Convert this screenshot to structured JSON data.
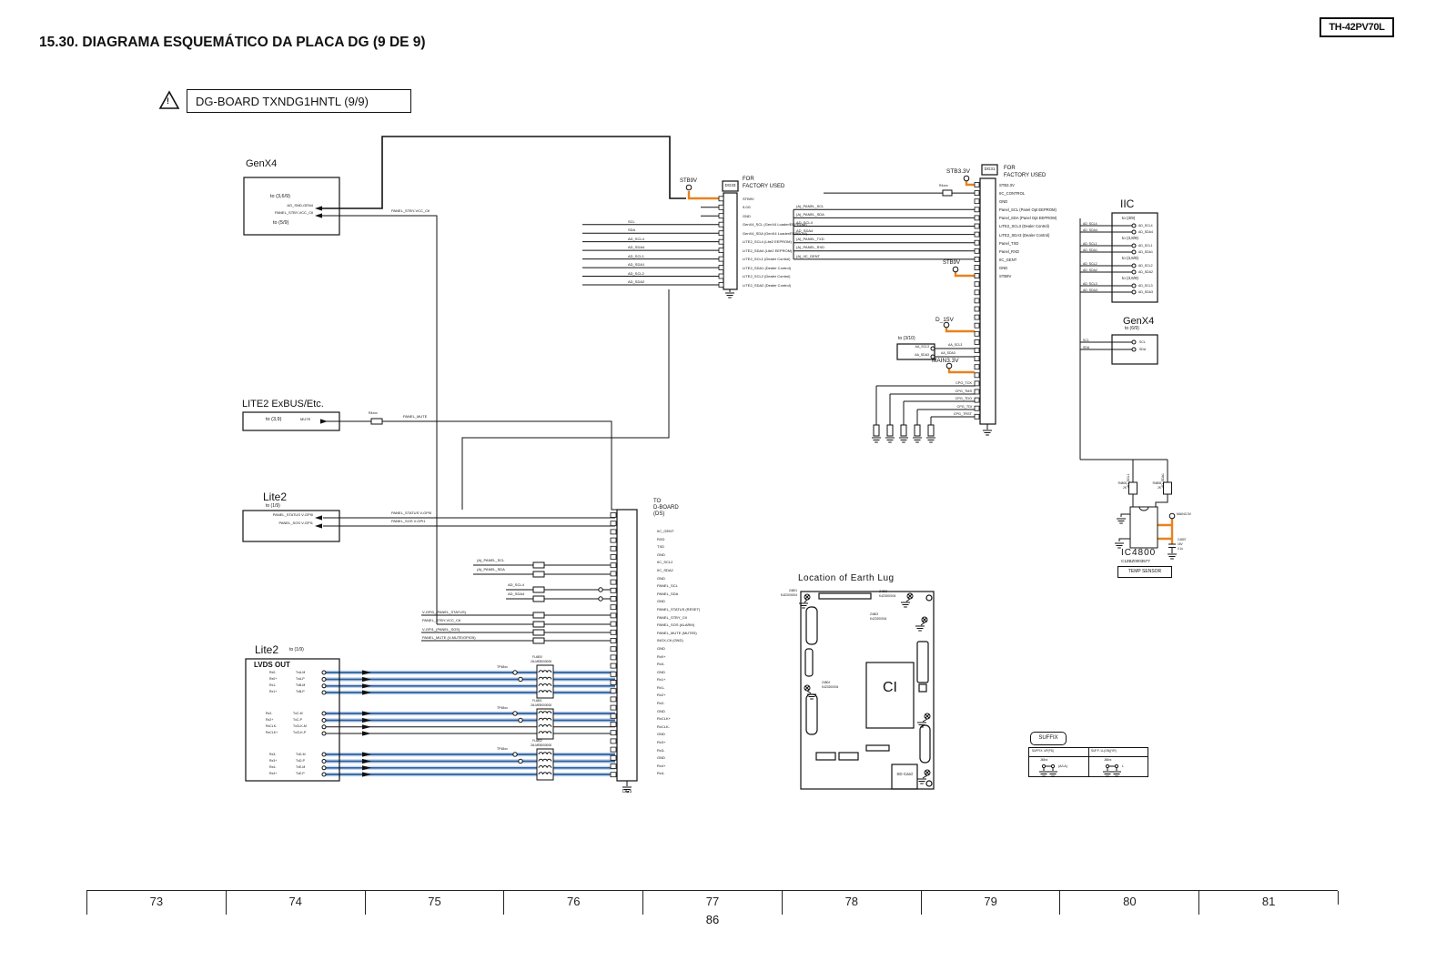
{
  "page": {
    "model": "TH-42PV70L",
    "title": "15.30. DIAGRAMA ESQUEMÁTICO DA PLACA DG (9 DE 9)",
    "warning_icon": "!",
    "board_label": "DG-BOARD TXNDG1HNTL (9/9)",
    "page_number": "86",
    "ruler": [
      "73",
      "74",
      "75",
      "76",
      "77",
      "78",
      "79",
      "80",
      "81"
    ]
  },
  "colors": {
    "wire": "#111111",
    "orange": "#e8821e",
    "lvds_blue": "#2d5f9f",
    "lvds_halo": "#c3d4ea"
  },
  "genx4_left": {
    "title": "GenX4",
    "to1": "to (3,6/9)",
    "sig1": "AG_SND-GEN4",
    "sig2": "PANEL_STBY-VCC_Ctl",
    "to2": "to (5/9)",
    "wire1": "PANEL_STBY-VCC_Ctl"
  },
  "dg33": {
    "ref": "DG33",
    "note1": "FOR",
    "note2": "FACTORY USED",
    "power": "STB9V",
    "pins": [
      "STB9V",
      "9-0G",
      "GND",
      "GenX4_SCL  (GenX4 Loader/EEPROM)",
      "GenX4_SDA  (GenX4 Loader/EEPROM)",
      "LITE2_SCL4  (Lite2 EEPROM)",
      "LITE2_SDA4  (Lite2 EEPROM)",
      "LITE2_SCL1  (Dealer Control)",
      "LITE2_SDA1  (Dealer Control)",
      "LITE2_SCL2  (Dealer Control)",
      "LITE2_SDA2  (Dealer Control)"
    ],
    "left_labels": [
      "SCL",
      "SDA",
      "AD_SCL4",
      "AD_SDA4",
      "AD_SCL1",
      "AD_SDA1",
      "AD_SCL2",
      "AD_SDA2"
    ]
  },
  "mid_labels": [
    "(A)_PANEL_SCL",
    "(A)_PANEL_SDA",
    "AD_SCL4",
    "AD_SDA4",
    "(A)_PANEL_TXD",
    "(A)_PANEL_RXD",
    "(A)_IIC_GENT"
  ],
  "dg31": {
    "ref": "DG31",
    "note1": "FOR",
    "note2": "FACTORY USED",
    "power_top": "STB3.3V",
    "res": "R4xxx",
    "power_mid": "STB9V",
    "power_d15": "D_15V",
    "power_main": "MAIN3.3V",
    "pins": [
      "STB3.3V",
      "IIC_CONTROL",
      "GND",
      "Panel_SCL (Panel Opt EEPROM)",
      "Panel_SDA  (Panel Opt EEPROM)",
      "LITE2_SCL3   (Dealer Control)",
      "LITE2_SDA3   (Dealer Control)",
      "Panel_TXD",
      "Panel_RXD",
      "IIC_GENT",
      "GND",
      "STB9V"
    ],
    "to310": {
      "label": "to (3/10)",
      "a": "AA_SCL3",
      "b": "AA_SDA3"
    },
    "jtag": [
      "CPG_TCK",
      "CPG_TMS",
      "CPG_TDO",
      "CPG_TDI",
      "CPG_TRST"
    ]
  },
  "iic": {
    "title": "IIC",
    "groups": [
      {
        "to": "to (3/9)",
        "a": "AD_SCL4",
        "b": "AD_SDA4"
      },
      {
        "to": "to (3,8/9)",
        "a": "AD_SCL1",
        "b": "AD_SDA1"
      },
      {
        "to": "to (3,6/9)",
        "a": "AD_SCL2",
        "b": "AD_SDA2"
      },
      {
        "to": "to (3,6/9)",
        "a": "AD_SCL3",
        "b": "AD_SDA3"
      }
    ]
  },
  "genx4_right": {
    "title": "GenX4",
    "to": "to (6/9)",
    "a": "SCL",
    "b": "SDA"
  },
  "exbus": {
    "title": "LITE2 ExBUS/Etc.",
    "to": "to (3,9)",
    "pin": "MUTE",
    "res": "R4xxx",
    "wire": "PANEL_MUTE"
  },
  "lite2": {
    "title": "Lite2",
    "to": "to (1/9)",
    "row1": "PANEL_STATUS  V-GPI0",
    "row2": "PANEL_SOS  V-GPI1",
    "wire1": "PANEL_STATUS  V-GPI0",
    "wire2": "PANEL_SOS  V-GPI1"
  },
  "conn_labels": {
    "a": "(A)_PANEL_SCL",
    "b": "(A)_PANEL_SDA",
    "c": "AD_SCL4",
    "d": "AD_SDA4"
  },
  "left_mid_labels": [
    "V-GPI0_(PANEL_STATUS)",
    "PANEL_STBY-VCC_Ctl",
    "V-GPI1_(PANEL_SOS)",
    "PANEL_MUTE (V-MUTE/GPIO5)"
  ],
  "lvds": {
    "title": "Lite2",
    "to": "to (1/9)",
    "sub": "LVDS OUT",
    "tp": "TP48xx",
    "g1a": [
      "Rx0-",
      "Rx0+",
      "Rx1-",
      "Rx1+"
    ],
    "g1b": [
      "TxA-M",
      "TxA-P",
      "TxB-M",
      "TxB-P"
    ],
    "g2a": [
      "Rx2-",
      "Rx2+",
      "RxCLK-",
      "RxCLK+"
    ],
    "g2b": [
      "TxC-M",
      "TxC-P",
      "TxCLK-M",
      "TxCLK-P"
    ],
    "g3a": [
      "Rx3-",
      "Rx3+",
      "Rx4-",
      "Rx4+"
    ],
    "g3b": [
      "TxD-M",
      "TxD-P",
      "TxE-M",
      "TxE-P"
    ],
    "fl": [
      {
        "ref": "FL4800",
        "part": "24LMEB000008"
      },
      {
        "ref": "FL4801",
        "part": "24LMEB000008"
      },
      {
        "ref": "FL4802",
        "part": "24LMEB000008"
      }
    ]
  },
  "dboard": {
    "t1": "TO",
    "t2": "D-BOARD",
    "t3": "(DS)",
    "ref": "DG5",
    "pins": [
      "IIC_GENT",
      "RXD",
      "TXD",
      "GND",
      "IIC_SCL2",
      "IIC_SDA2",
      "GND",
      "PANEL_SCL",
      "PANEL_SDA",
      "GND",
      "PANEL_STATUS (RESET)",
      "PANEL_STBY_Ctl",
      "PANEL_SOS (ALARM)",
      "PANEL_MUTE (MUTE5)",
      "INGX-Ctl (GND)",
      "GND",
      "Rx0+",
      "Rx0-",
      "GND",
      "Rx1+",
      "Rx1-",
      "Rx2+",
      "Rx2-",
      "GND",
      "RxCLK+",
      "RxCLK-",
      "GND",
      "Rx3+",
      "Rx3-",
      "GND",
      "Rx4+",
      "Rx4-"
    ]
  },
  "earth": {
    "title": "Location of Earth Lug",
    "ci": "CI",
    "sd": "SD Card",
    "lugs": [
      {
        "ref": "Z4801",
        "part": "K4Z0200004"
      },
      {
        "ref": "Z4802",
        "part": "K4Z0200004"
      },
      {
        "ref": "Z4803",
        "part": "K4Z0200004"
      },
      {
        "ref": "Z4804",
        "part": "K4Z0200004"
      }
    ]
  },
  "ic4800": {
    "ref": "IC4800",
    "part": "C1ZBZ0003577",
    "box": "TEMP SENSOR",
    "r1a": "R4806",
    "r1b": "2K",
    "r2a": "R4808",
    "r2b": "2K",
    "w1": "AD_SCL1",
    "w2": "AD_SDA1",
    "power": "MAIN3.3V",
    "cap1": "C4807",
    "cap2": "16V",
    "cap3": "0.1u"
  },
  "suffix": {
    "title": "SUFFIX",
    "h1": "SUFFIX: UP(PD)",
    "h2": "SUF.F: LL(GN)(YR)",
    "j1": "J48xx",
    "t1": "(A/LA)",
    "j2": "J48xx",
    "t2": "L"
  }
}
